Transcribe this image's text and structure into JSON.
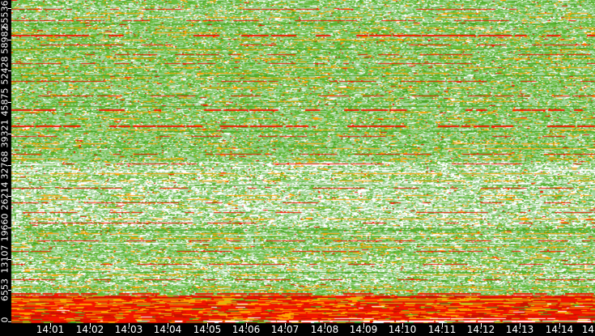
{
  "chart_data": {
    "type": "heatmap",
    "title": "",
    "xlabel": "",
    "ylabel": "",
    "x_axis": {
      "labels": [
        "14:01",
        "14:02",
        "14:03",
        "14:04",
        "14:05",
        "14:06",
        "14:07",
        "14:08",
        "14:09",
        "14:10",
        "14:11",
        "14:12",
        "14:13",
        "14:14"
      ],
      "edge_label": "14"
    },
    "y_axis": {
      "labels": [
        "0",
        "6553",
        "13107",
        "19660",
        "26214",
        "32768",
        "39321",
        "45875",
        "52428",
        "58982",
        "65536"
      ],
      "min": 0,
      "max": 65536
    },
    "palette": {
      "background": "#000000",
      "axis_text": "#ffffff",
      "pale": "#a6d59d",
      "mid": "#68bd3c",
      "dark": "#47a321",
      "white": "#ffffff",
      "orange": "#ffa300",
      "red": "#f01b00",
      "darkred": "#c51300",
      "olive": "#bdc81e",
      "redbase": "#f21500"
    },
    "bands": [
      {
        "vmin": 62600,
        "vmax": 65537,
        "mode": "green",
        "white": 0.12,
        "orange": 0.05,
        "red": 0.01,
        "dark": 0.06,
        "alt": 0.25,
        "midRow": 0.35,
        "darkRow": 0.05
      },
      {
        "vmin": 33400,
        "vmax": 62600,
        "mode": "green",
        "white": 0.08,
        "orange": 0.06,
        "red": 0.015,
        "dark": 0.07,
        "alt": 0.3,
        "midRow": 0.55,
        "darkRow": 0.08
      },
      {
        "vmin": 19800,
        "vmax": 33400,
        "mode": "green",
        "white": 0.32,
        "orange": 0.035,
        "red": 0.01,
        "dark": 0.03,
        "alt": 0.15,
        "midRow": 0.15,
        "darkRow": 0.02
      },
      {
        "vmin": 13700,
        "vmax": 19800,
        "mode": "green",
        "white": 0.12,
        "orange": 0.05,
        "red": 0.012,
        "dark": 0.05,
        "alt": 0.3,
        "midRow": 0.45,
        "darkRow": 0.06
      },
      {
        "vmin": 7700,
        "vmax": 13700,
        "mode": "green",
        "white": 0.24,
        "orange": 0.04,
        "red": 0.01,
        "dark": 0.03,
        "alt": 0.2,
        "midRow": 0.25,
        "darkRow": 0.03
      },
      {
        "vmin": 5500,
        "vmax": 7700,
        "mode": "green",
        "white": 0.1,
        "orange": 0.06,
        "red": 0.02,
        "dark": 0.06,
        "alt": 0.3,
        "midRow": 0.5,
        "darkRow": 0.08
      },
      {
        "vmin": 300,
        "vmax": 5500,
        "mode": "red",
        "orange": 0.2,
        "darkred": 0.14,
        "olive": 0.03,
        "green": 0.03,
        "white": 0.005
      },
      {
        "vmin": 0,
        "vmax": 300,
        "mode": "red",
        "orange": 0.12,
        "darkred": 0.2,
        "olive": 0.02,
        "green": 0.1,
        "white": 0.06
      }
    ],
    "streaks": [
      [
        65300,
        "r",
        0.5,
        1
      ],
      [
        64500,
        "o",
        0.4,
        1
      ],
      [
        63600,
        "o",
        0.45,
        1
      ],
      [
        63000,
        "r",
        0.6,
        1
      ],
      [
        62300,
        "d",
        0.85,
        1
      ],
      [
        61500,
        "o",
        0.4,
        1
      ],
      [
        60500,
        "o",
        0.35,
        1
      ],
      [
        59900,
        "r",
        0.7,
        2
      ],
      [
        58900,
        "o",
        0.4,
        1
      ],
      [
        57900,
        "r",
        0.5,
        1
      ],
      [
        57000,
        "d",
        0.85,
        1
      ],
      [
        56900,
        "o",
        0.35,
        1
      ],
      [
        55900,
        "r",
        0.6,
        1
      ],
      [
        55000,
        "o",
        0.4,
        1
      ],
      [
        54000,
        "r",
        0.45,
        1
      ],
      [
        53200,
        "o",
        0.45,
        1
      ],
      [
        52000,
        "o",
        0.4,
        1
      ],
      [
        51500,
        "d",
        0.85,
        1
      ],
      [
        50900,
        "o",
        0.4,
        1
      ],
      [
        50300,
        "r",
        0.6,
        1
      ],
      [
        49000,
        "o",
        0.45,
        1
      ],
      [
        47200,
        "r",
        0.55,
        1
      ],
      [
        46000,
        "o",
        0.4,
        1
      ],
      [
        45000,
        "d",
        0.85,
        1
      ],
      [
        44400,
        "r",
        0.6,
        2
      ],
      [
        43800,
        "o",
        0.4,
        1
      ],
      [
        42500,
        "o",
        0.35,
        1
      ],
      [
        41000,
        "r",
        0.8,
        2
      ],
      [
        40200,
        "o",
        0.4,
        1
      ],
      [
        39800,
        "d",
        0.85,
        1
      ],
      [
        38800,
        "r",
        0.5,
        1
      ],
      [
        37200,
        "o",
        0.45,
        1
      ],
      [
        36600,
        "d",
        0.8,
        1
      ],
      [
        36200,
        "o",
        0.4,
        1
      ],
      [
        35000,
        "r",
        0.55,
        1
      ],
      [
        34000,
        "o",
        0.45,
        1
      ],
      [
        33000,
        "r",
        0.6,
        1
      ],
      [
        32800,
        "w",
        0.3,
        1
      ],
      [
        31600,
        "w",
        0.5,
        1
      ],
      [
        31000,
        "o",
        0.5,
        1
      ],
      [
        30500,
        "ol",
        0.5,
        1
      ],
      [
        29500,
        "o",
        0.45,
        1
      ],
      [
        28800,
        "w",
        0.45,
        1
      ],
      [
        28600,
        "d",
        0.7,
        1
      ],
      [
        27900,
        "r",
        0.5,
        1
      ],
      [
        26500,
        "o",
        0.45,
        1
      ],
      [
        25500,
        "o",
        0.4,
        1
      ],
      [
        24900,
        "r",
        0.6,
        1
      ],
      [
        23800,
        "ol",
        0.4,
        1
      ],
      [
        23600,
        "w",
        0.5,
        1
      ],
      [
        22900,
        "r",
        0.5,
        1
      ],
      [
        21500,
        "o",
        0.45,
        1
      ],
      [
        20700,
        "r",
        0.45,
        1
      ],
      [
        19200,
        "d",
        0.75,
        1
      ],
      [
        18500,
        "o",
        0.45,
        1
      ],
      [
        18100,
        "w",
        0.4,
        1
      ],
      [
        17500,
        "o",
        0.4,
        1
      ],
      [
        16900,
        "r",
        0.5,
        1
      ],
      [
        16500,
        "w",
        0.4,
        1
      ],
      [
        15500,
        "o",
        0.45,
        1
      ],
      [
        14700,
        "r",
        0.55,
        1
      ],
      [
        13400,
        "o",
        0.45,
        1
      ],
      [
        12500,
        "ol",
        0.5,
        1
      ],
      [
        12000,
        "r",
        0.5,
        1
      ],
      [
        11000,
        "o",
        0.4,
        1
      ],
      [
        10800,
        "w",
        0.4,
        1
      ],
      [
        10400,
        "d",
        0.7,
        1
      ],
      [
        9800,
        "o",
        0.45,
        1
      ],
      [
        8800,
        "r",
        0.6,
        1
      ],
      [
        7200,
        "o",
        0.5,
        1
      ],
      [
        6600,
        "o",
        0.45,
        1
      ],
      [
        5900,
        "r",
        0.7,
        2
      ],
      [
        5100,
        "dr",
        0.7,
        1
      ],
      [
        4700,
        "ol",
        0.6,
        1
      ],
      [
        4400,
        "o",
        0.6,
        1
      ],
      [
        3900,
        "ol",
        0.5,
        1
      ],
      [
        3600,
        "o",
        0.5,
        1
      ],
      [
        2500,
        "o",
        0.45,
        1
      ],
      [
        1800,
        "o",
        0.5,
        1
      ],
      [
        1200,
        "dr",
        0.6,
        1
      ],
      [
        1000,
        "w",
        0.2,
        1,
        0.85
      ],
      [
        600,
        "w",
        0.35,
        1,
        0.42
      ],
      [
        150,
        "w",
        0.92,
        2,
        0.28
      ],
      [
        60,
        "d",
        0.5,
        1
      ]
    ]
  }
}
